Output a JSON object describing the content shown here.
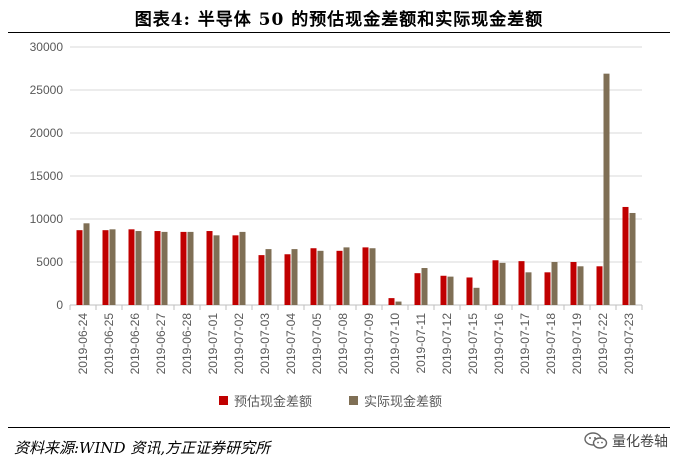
{
  "title": "图表4:  半导体 50 的预估现金差额和实际现金差额",
  "source": "资料来源:WIND 资讯,方正证券研究所",
  "watermark": "量化卷轴",
  "colors": {
    "est": "#C00000",
    "act": "#7F6F55",
    "grid": "#D9D9D9",
    "axis": "#BFBFBF",
    "text": "#595959"
  },
  "chart_data": {
    "type": "bar",
    "categories": [
      "2019-06-24",
      "2019-06-25",
      "2019-06-26",
      "2019-06-27",
      "2019-06-28",
      "2019-07-01",
      "2019-07-02",
      "2019-07-03",
      "2019-07-04",
      "2019-07-05",
      "2019-07-08",
      "2019-07-09",
      "2019-07-10",
      "2019-07-11",
      "2019-07-12",
      "2019-07-15",
      "2019-07-16",
      "2019-07-17",
      "2019-07-18",
      "2019-07-19",
      "2019-07-22",
      "2019-07-23"
    ],
    "series": [
      {
        "name": "预估现金差额",
        "values": [
          8700,
          8700,
          8800,
          8600,
          8500,
          8600,
          8100,
          5800,
          5900,
          6600,
          6300,
          6700,
          800,
          3700,
          3400,
          3200,
          5200,
          5100,
          3800,
          5000,
          4500,
          11400
        ]
      },
      {
        "name": "实际现金差额",
        "values": [
          9500,
          8800,
          8600,
          8500,
          8500,
          8100,
          8500,
          6500,
          6500,
          6300,
          6700,
          6600,
          400,
          4300,
          3300,
          2000,
          4900,
          3800,
          5000,
          4500,
          26900,
          10700
        ]
      }
    ],
    "yticks": [
      0,
      5000,
      10000,
      15000,
      20000,
      25000,
      30000
    ],
    "ylim": [
      0,
      30000
    ],
    "grid": true,
    "legend": "bottom"
  }
}
